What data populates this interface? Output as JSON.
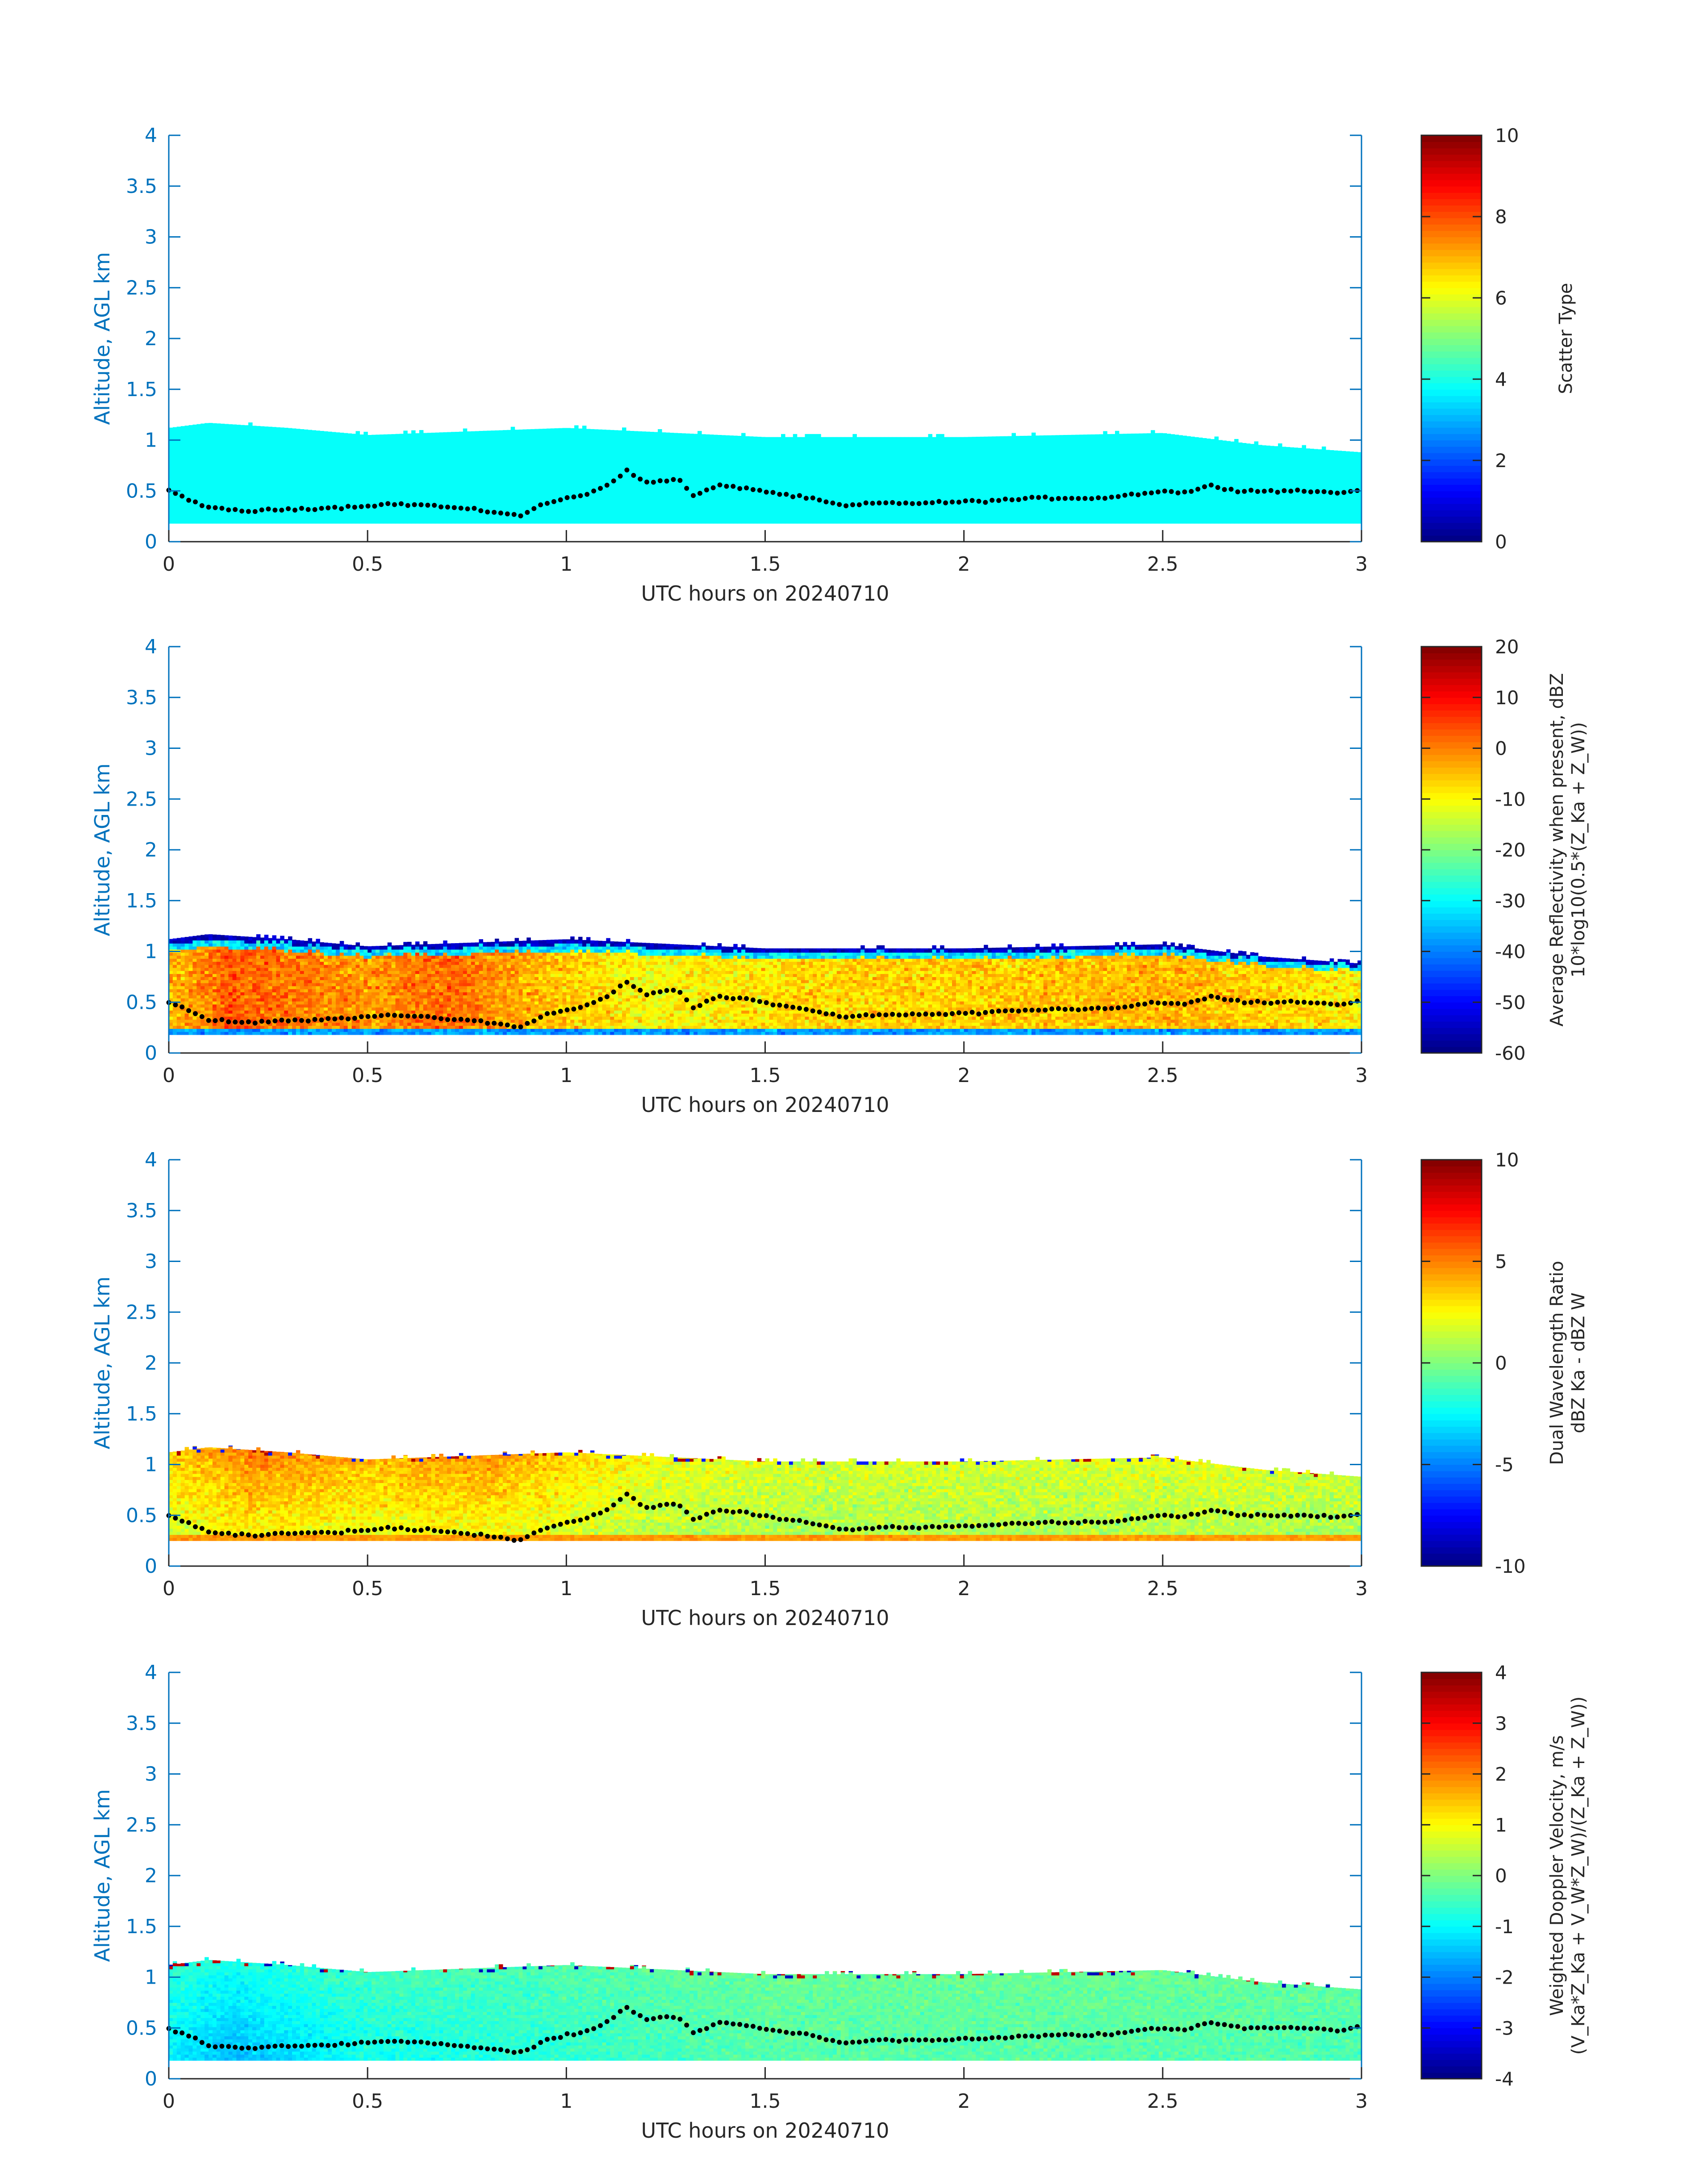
{
  "figure": {
    "common_xlabel": "UTC hours on 20240710",
    "common_ylabel": "Altitude, AGL km"
  },
  "chart_data": [
    {
      "type": "heatmap",
      "xlabel": "UTC hours on 20240710",
      "ylabel": "Altitude, AGL km",
      "xlim": [
        0,
        3
      ],
      "ylim": [
        0,
        4
      ],
      "xticks": [
        "0",
        "0.5",
        "1",
        "1.5",
        "2",
        "2.5",
        "3"
      ],
      "yticks": [
        "0",
        "0.5",
        "1",
        "1.5",
        "2",
        "2.5",
        "3",
        "3.5",
        "4"
      ],
      "field": "scatter_type",
      "colorbar": {
        "label": "Scatter Type",
        "label2": "",
        "min": 0,
        "max": 10,
        "ticks": [
          "0",
          "2",
          "4",
          "6",
          "8",
          "10"
        ]
      },
      "echo": {
        "base_km": 0.18,
        "top_km_at_hours": [
          [
            0,
            1.12
          ],
          [
            0.1,
            1.17
          ],
          [
            0.3,
            1.12
          ],
          [
            0.5,
            1.05
          ],
          [
            1.0,
            1.12
          ],
          [
            1.5,
            1.03
          ],
          [
            2.0,
            1.03
          ],
          [
            2.5,
            1.07
          ],
          [
            2.75,
            0.95
          ],
          [
            3.0,
            0.88
          ]
        ],
        "value": 3.8
      },
      "colormap": "jet",
      "overlay": "black dotted line (boundary-layer height)"
    },
    {
      "type": "heatmap",
      "xlabel": "UTC hours on 20240710",
      "ylabel": "Altitude, AGL km",
      "xlim": [
        0,
        3
      ],
      "ylim": [
        0,
        4
      ],
      "xticks": [
        "0",
        "0.5",
        "1",
        "1.5",
        "2",
        "2.5",
        "3"
      ],
      "yticks": [
        "0",
        "0.5",
        "1",
        "1.5",
        "2",
        "2.5",
        "3",
        "3.5",
        "4"
      ],
      "field": "average_reflectivity",
      "colorbar": {
        "label": "Average Reflectivity when present, dBZ",
        "label2": "10*log10(0.5*(Z_Ka + Z_W))",
        "min": -60,
        "max": 20,
        "ticks": [
          "-60",
          "-50",
          "-40",
          "-30",
          "-20",
          "-10",
          "0",
          "10",
          "20"
        ]
      },
      "echo": {
        "base_km": 0.18,
        "top_km_at_hours": [
          [
            0,
            1.12
          ],
          [
            0.1,
            1.17
          ],
          [
            0.3,
            1.12
          ],
          [
            0.5,
            1.05
          ],
          [
            1.0,
            1.12
          ],
          [
            1.5,
            1.03
          ],
          [
            2.0,
            1.03
          ],
          [
            2.5,
            1.07
          ],
          [
            2.75,
            0.95
          ],
          [
            3.0,
            0.88
          ]
        ],
        "typical_dBZ_by_hours": [
          [
            0.0,
            -5
          ],
          [
            0.15,
            3
          ],
          [
            0.5,
            -2
          ],
          [
            0.7,
            2
          ],
          [
            0.9,
            -4
          ],
          [
            1.2,
            -10
          ],
          [
            1.6,
            -7
          ],
          [
            2.1,
            -6
          ],
          [
            2.5,
            -4
          ],
          [
            3.0,
            -9
          ]
        ]
      },
      "colormap": "jet",
      "overlay": "black dotted line (boundary-layer height)"
    },
    {
      "type": "heatmap",
      "xlabel": "UTC hours on 20240710",
      "ylabel": "Altitude, AGL km",
      "xlim": [
        0,
        3
      ],
      "ylim": [
        0,
        4
      ],
      "xticks": [
        "0",
        "0.5",
        "1",
        "1.5",
        "2",
        "2.5",
        "3"
      ],
      "yticks": [
        "0",
        "0.5",
        "1",
        "1.5",
        "2",
        "2.5",
        "3",
        "3.5",
        "4"
      ],
      "field": "dual_wavelength_ratio",
      "colorbar": {
        "label": "Dual Wavelength Ratio",
        "label2": "dBZ Ka - dBZ W",
        "min": -10,
        "max": 10,
        "ticks": [
          "-10",
          "-5",
          "0",
          "5",
          "10"
        ]
      },
      "echo": {
        "base_km": 0.25,
        "top_km_at_hours": [
          [
            0,
            1.12
          ],
          [
            0.1,
            1.17
          ],
          [
            0.3,
            1.12
          ],
          [
            0.5,
            1.05
          ],
          [
            1.0,
            1.12
          ],
          [
            1.5,
            1.03
          ],
          [
            2.0,
            1.03
          ],
          [
            2.5,
            1.07
          ],
          [
            2.75,
            0.95
          ],
          [
            3.0,
            0.88
          ]
        ],
        "typical_dB_by_hours": [
          [
            0.0,
            3
          ],
          [
            0.2,
            4.5
          ],
          [
            0.5,
            3.5
          ],
          [
            0.8,
            4
          ],
          [
            1.2,
            2
          ],
          [
            1.6,
            1.5
          ],
          [
            2.2,
            1.5
          ],
          [
            2.6,
            1.8
          ],
          [
            3.0,
            1.2
          ]
        ]
      },
      "colormap": "jet",
      "overlay": "black dotted line (boundary-layer height)"
    },
    {
      "type": "heatmap",
      "xlabel": "UTC hours on 20240710",
      "ylabel": "Altitude, AGL km",
      "xlim": [
        0,
        3
      ],
      "ylim": [
        0,
        4
      ],
      "xticks": [
        "0",
        "0.5",
        "1",
        "1.5",
        "2",
        "2.5",
        "3"
      ],
      "yticks": [
        "0",
        "0.5",
        "1",
        "1.5",
        "2",
        "2.5",
        "3",
        "3.5",
        "4"
      ],
      "field": "weighted_doppler_velocity",
      "colorbar": {
        "label": "Weighted Doppler Velocity, m/s",
        "label2": "(V_Ka*Z_Ka + V_W*Z_W)/(Z_Ka + Z_W))",
        "min": -4,
        "max": 4,
        "ticks": [
          "-4",
          "-3",
          "-2",
          "-1",
          "0",
          "1",
          "2",
          "3",
          "4"
        ]
      },
      "echo": {
        "base_km": 0.18,
        "top_km_at_hours": [
          [
            0,
            1.12
          ],
          [
            0.1,
            1.17
          ],
          [
            0.3,
            1.12
          ],
          [
            0.5,
            1.05
          ],
          [
            1.0,
            1.12
          ],
          [
            1.5,
            1.03
          ],
          [
            2.0,
            1.03
          ],
          [
            2.5,
            1.07
          ],
          [
            2.75,
            0.95
          ],
          [
            3.0,
            0.88
          ]
        ],
        "typical_ms_by_hours": [
          [
            0.0,
            -1.0
          ],
          [
            0.15,
            -1.4
          ],
          [
            0.5,
            -0.8
          ],
          [
            1.0,
            -0.6
          ],
          [
            1.5,
            -0.3
          ],
          [
            2.0,
            -0.3
          ],
          [
            2.5,
            -0.3
          ],
          [
            3.0,
            -0.4
          ]
        ]
      },
      "colormap": "jet",
      "overlay": "black dotted line (boundary-layer height)"
    }
  ],
  "boundary_layer_height_km": [
    [
      0.0,
      0.5
    ],
    [
      0.05,
      0.42
    ],
    [
      0.1,
      0.33
    ],
    [
      0.2,
      0.3
    ],
    [
      0.3,
      0.32
    ],
    [
      0.45,
      0.34
    ],
    [
      0.55,
      0.37
    ],
    [
      0.65,
      0.36
    ],
    [
      0.75,
      0.32
    ],
    [
      0.85,
      0.28
    ],
    [
      0.88,
      0.25
    ],
    [
      0.95,
      0.38
    ],
    [
      1.05,
      0.47
    ],
    [
      1.1,
      0.55
    ],
    [
      1.15,
      0.7
    ],
    [
      1.2,
      0.58
    ],
    [
      1.28,
      0.62
    ],
    [
      1.32,
      0.45
    ],
    [
      1.38,
      0.55
    ],
    [
      1.45,
      0.53
    ],
    [
      1.52,
      0.48
    ],
    [
      1.62,
      0.42
    ],
    [
      1.7,
      0.35
    ],
    [
      1.78,
      0.38
    ],
    [
      1.9,
      0.38
    ],
    [
      2.05,
      0.4
    ],
    [
      2.2,
      0.43
    ],
    [
      2.35,
      0.43
    ],
    [
      2.5,
      0.5
    ],
    [
      2.55,
      0.48
    ],
    [
      2.62,
      0.55
    ],
    [
      2.7,
      0.5
    ],
    [
      2.85,
      0.5
    ],
    [
      2.95,
      0.48
    ],
    [
      3.0,
      0.52
    ]
  ]
}
